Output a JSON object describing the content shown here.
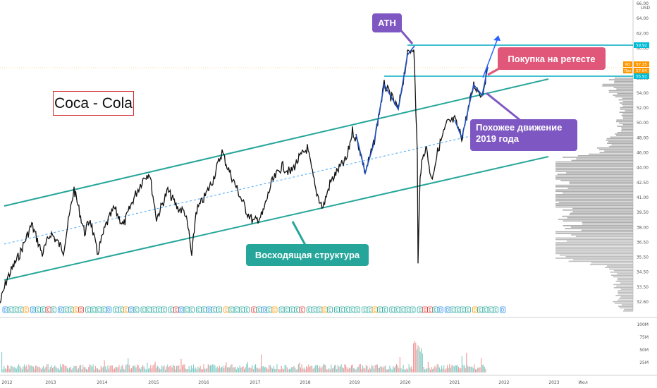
{
  "chart_data": {
    "type": "line",
    "title": "Coca - Cola",
    "currency": "USD",
    "y_ticks": [
      "66.00",
      "64.00",
      "62.00",
      "60.00",
      "58.00",
      "56.00",
      "54.00",
      "52.00",
      "50.00",
      "48.00",
      "46.00",
      "44.00",
      "42.50",
      "41.00",
      "39.50",
      "38.00",
      "36.50",
      "35.50",
      "34.50",
      "33.50",
      "32.60"
    ],
    "x_ticks": [
      "2012",
      "2013",
      "2014",
      "2015",
      "2016",
      "2017",
      "2018",
      "2019",
      "2020",
      "2021",
      "2022",
      "2023",
      "Июл"
    ],
    "volume_ticks": [
      "100M",
      "75M",
      "50M",
      "25M"
    ],
    "price_labels": [
      {
        "text": "59.92",
        "color": "#00bcd4"
      },
      {
        "text": "57.25",
        "color": "#ff9800",
        "prefix": "KO"
      },
      {
        "text": "57.04",
        "color": "#ff9800",
        "prefix": "Пре"
      },
      {
        "text": "55.91",
        "color": "#00bcd4"
      }
    ],
    "series": [
      {
        "name": "KO",
        "x": [
          "2012-01",
          "2012-06",
          "2013-01",
          "2013-06",
          "2014-01",
          "2014-06",
          "2015-01",
          "2015-06",
          "2015-09",
          "2016-01",
          "2016-06",
          "2017-01",
          "2017-06",
          "2018-01",
          "2018-06",
          "2018-12",
          "2019-06",
          "2019-10",
          "2020-02",
          "2020-03",
          "2020-06",
          "2020-12",
          "2021-06",
          "2021-09"
        ],
        "y": [
          33.5,
          39.5,
          41.0,
          43.5,
          38.5,
          42.0,
          44.0,
          42.0,
          37.5,
          42.5,
          46.5,
          41.0,
          44.5,
          47.0,
          43.0,
          46.5,
          51.0,
          54.5,
          60.0,
          36.5,
          46.0,
          53.0,
          56.0,
          57.0
        ]
      }
    ],
    "annotations": {
      "ath": "ATH",
      "buy": "Покупка на ретесте",
      "similar_line1": "Похожее движение",
      "similar_line2": "2019 года",
      "ascending": "Восходящая структура"
    },
    "colors": {
      "channel": "#26a69a",
      "horizontal": "#00acc1",
      "arrow": "#2962ff",
      "price": "#000000"
    }
  }
}
